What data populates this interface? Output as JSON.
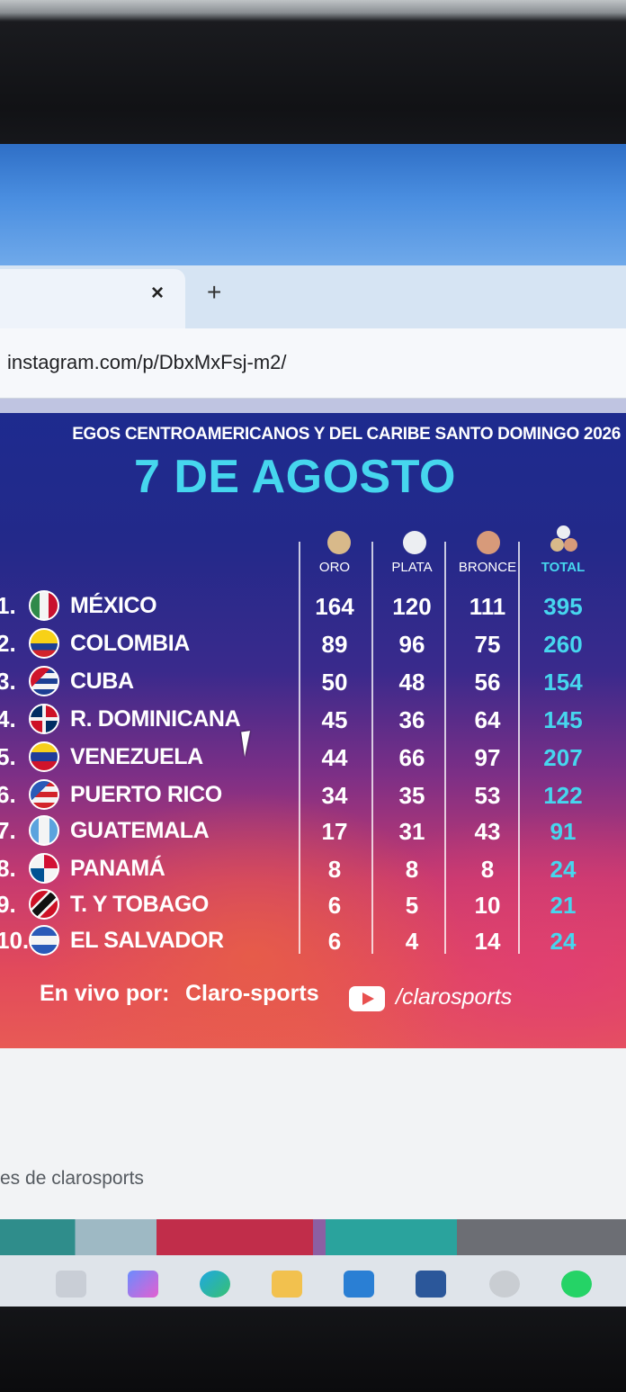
{
  "browser": {
    "tab_close_icon": "×",
    "new_tab_icon": "+",
    "url": "instagram.com/p/DbxMxFsj-m2/"
  },
  "post": {
    "subtitle": "EGOS CENTROAMERICANOS Y DEL CARIBE SANTO DOMINGO 2026",
    "date": "7 DE AGOSTO",
    "columns": {
      "gold": "ORO",
      "silver": "PLATA",
      "bronze": "BRONCE",
      "total": "TOTAL"
    },
    "rows": [
      {
        "rank": "1.",
        "country": "MÉXICO",
        "gold": "164",
        "silver": "120",
        "bronze": "111",
        "total": "395"
      },
      {
        "rank": "2.",
        "country": "COLOMBIA",
        "gold": "89",
        "silver": "96",
        "bronze": "75",
        "total": "260"
      },
      {
        "rank": "3.",
        "country": "CUBA",
        "gold": "50",
        "silver": "48",
        "bronze": "56",
        "total": "154"
      },
      {
        "rank": "4.",
        "country": "R. DOMINICANA",
        "gold": "45",
        "silver": "36",
        "bronze": "64",
        "total": "145"
      },
      {
        "rank": "5.",
        "country": "VENEZUELA",
        "gold": "44",
        "silver": "66",
        "bronze": "97",
        "total": "207"
      },
      {
        "rank": "6.",
        "country": "PUERTO RICO",
        "gold": "34",
        "silver": "35",
        "bronze": "53",
        "total": "122"
      },
      {
        "rank": "7.",
        "country": "GUATEMALA",
        "gold": "17",
        "silver": "31",
        "bronze": "43",
        "total": "91"
      },
      {
        "rank": "8.",
        "country": "PANAMÁ",
        "gold": "8",
        "silver": "8",
        "bronze": "8",
        "total": "24"
      },
      {
        "rank": "9.",
        "country": "T. Y TOBAGO",
        "gold": "6",
        "silver": "5",
        "bronze": "10",
        "total": "21"
      },
      {
        "rank": "10.",
        "country": "EL SALVADOR",
        "gold": "6",
        "silver": "4",
        "bronze": "14",
        "total": "24"
      }
    ],
    "footer": {
      "live_label": "En vivo por:",
      "brand": "Claro-sports",
      "handle": "/clarosports"
    }
  },
  "page": {
    "more_from": "es de clarosports"
  },
  "colors": {
    "accent_cyan": "#46d6ee",
    "gold": "#d8b98a",
    "silver": "#eceef2",
    "bronze": "#d79a7a"
  },
  "taskbar_icons": [
    "start-icon",
    "copilot-icon",
    "edge-icon",
    "file-explorer-icon",
    "outlook-icon",
    "word-icon",
    "whatsapp-icon",
    "whatsapp-icon"
  ]
}
